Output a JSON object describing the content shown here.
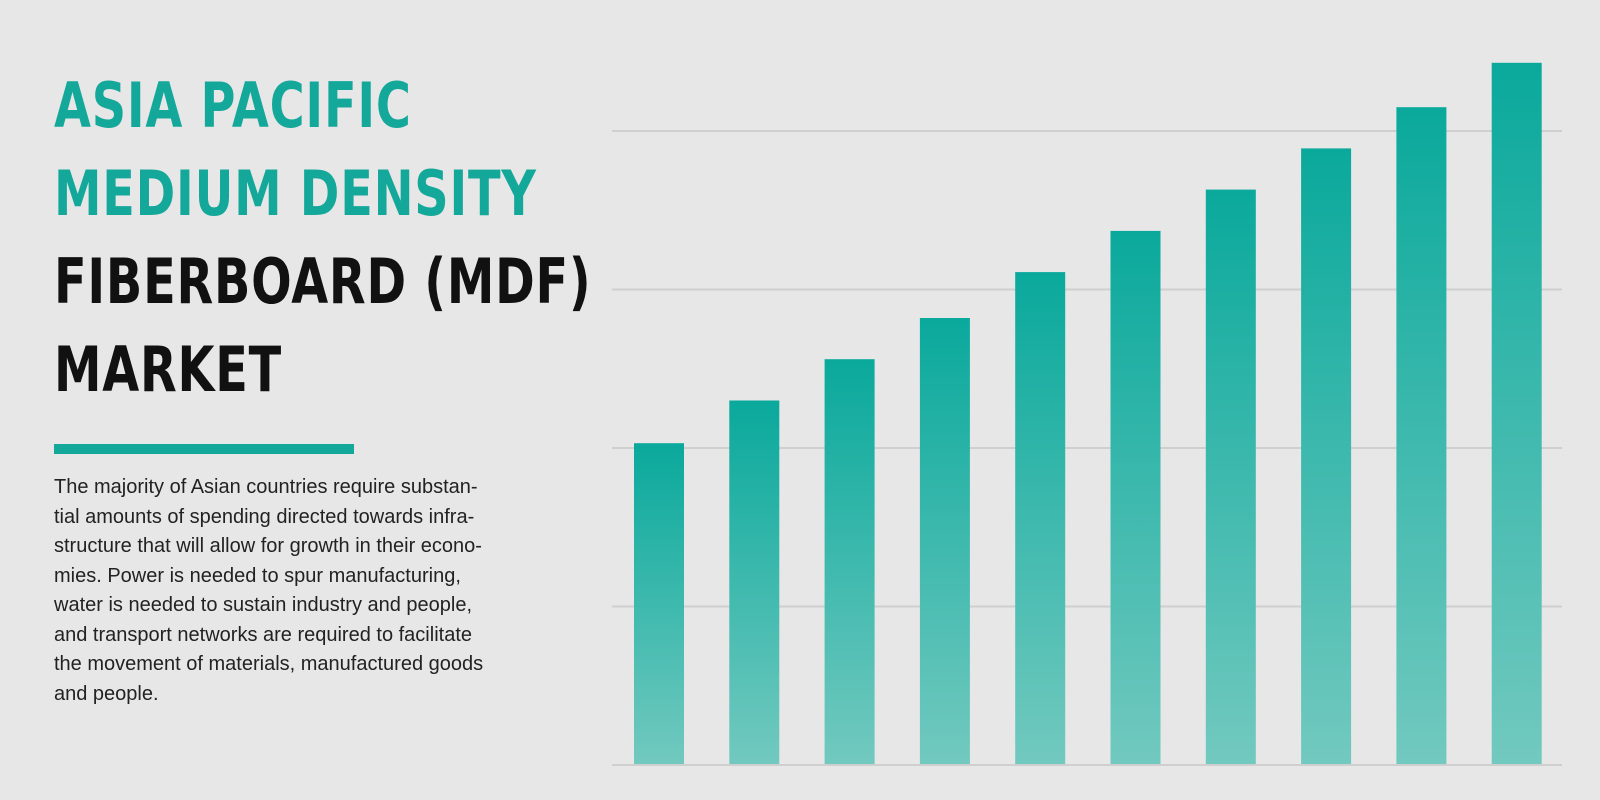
{
  "title": {
    "line1": "ASIA PACIFIC",
    "line2": "MEDIUM DENSITY",
    "line3": "FIBERBOARD (MDF)",
    "line4": "MARKET"
  },
  "description": "The majority of Asian countries require substan-\ntial amounts of spending directed towards infra-\nstructure that will allow for growth in their econo-\nmies. Power is needed to spur manufacturing,\nwater is needed to sustain industry and people,\nand transport networks are required to facilitate\nthe movement of materials, manufactured goods\nand people.",
  "colors": {
    "accent": "#14a89b",
    "bar_top": "#0aa99c",
    "bar_bottom": "#72c9bf",
    "gridline": "#cfcfcf",
    "background": "#e7e7e7"
  },
  "chart_data": {
    "type": "bar",
    "values": [
      2.03,
      2.3,
      2.56,
      2.82,
      3.11,
      3.37,
      3.63,
      3.89,
      4.15,
      4.43
    ],
    "ylim": [
      0,
      4.8
    ],
    "gridlines": [
      1,
      2,
      3,
      4
    ],
    "grid": true,
    "legend": "none"
  }
}
